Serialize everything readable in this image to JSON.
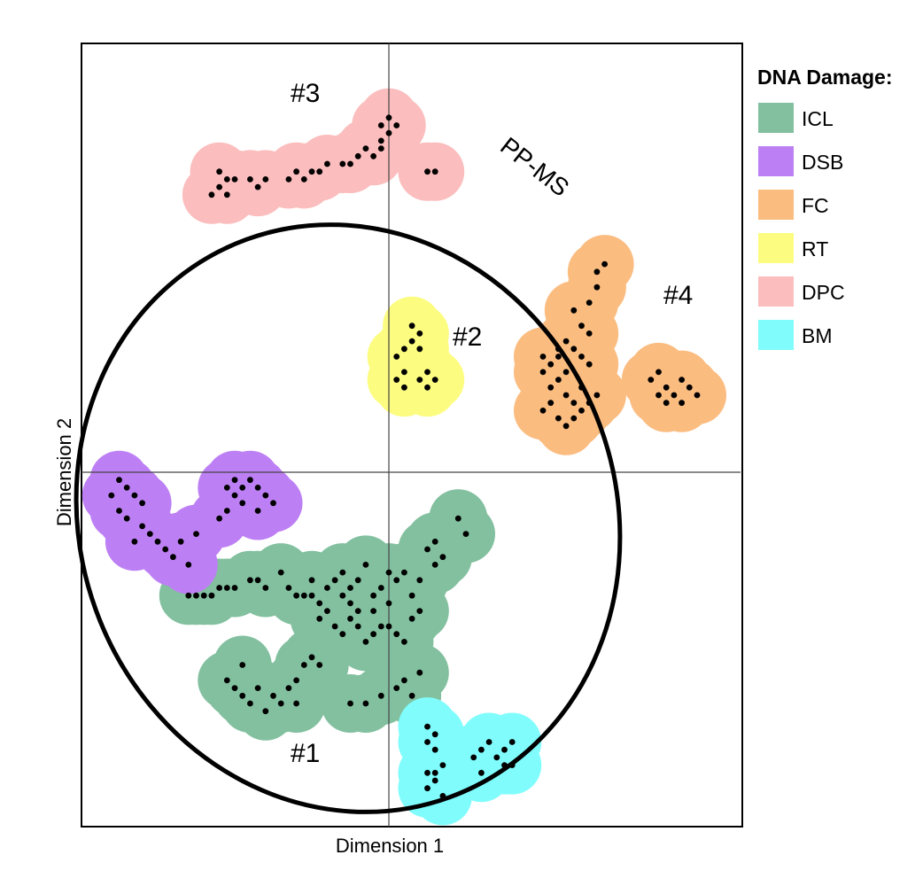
{
  "chart_data": {
    "type": "scatter",
    "xlabel": "Dimension 1",
    "ylabel": "Dimension 2",
    "legend": {
      "title": "DNA Damage:",
      "placement": "right",
      "items": [
        {
          "name": "ICL",
          "color": "#82c09f"
        },
        {
          "name": "DSB",
          "color": "#bd80f4"
        },
        {
          "name": "FC",
          "color": "#fbbc80"
        },
        {
          "name": "RT",
          "color": "#fcfc80"
        },
        {
          "name": "DPC",
          "color": "#fbbdbd"
        },
        {
          "name": "BM",
          "color": "#80fcfc"
        }
      ]
    },
    "annotations": {
      "method": "PP-MS",
      "clusters": [
        "#1",
        "#2",
        "#3",
        "#4"
      ]
    },
    "axis_lines": {
      "x_zero": 0,
      "y_zero": 0
    },
    "grid": false,
    "series": [
      {
        "name": "ICL",
        "color": "#82c09f",
        "points": [
          [
            -2.6,
            -1.6
          ],
          [
            -2.5,
            -1.6
          ],
          [
            -2.4,
            -1.6
          ],
          [
            -2.3,
            -1.6
          ],
          [
            -2.2,
            -1.5
          ],
          [
            -2.1,
            -1.5
          ],
          [
            -2.0,
            -1.5
          ],
          [
            -1.8,
            -1.4
          ],
          [
            -1.7,
            -1.4
          ],
          [
            -1.6,
            -1.5
          ],
          [
            -1.4,
            -1.3
          ],
          [
            -1.3,
            -1.5
          ],
          [
            -1.2,
            -1.6
          ],
          [
            -1.1,
            -1.6
          ],
          [
            -1.0,
            -1.6
          ],
          [
            -0.9,
            -1.7
          ],
          [
            -0.8,
            -1.5
          ],
          [
            -0.7,
            -1.4
          ],
          [
            -0.6,
            -1.3
          ],
          [
            -0.5,
            -1.5
          ],
          [
            -0.4,
            -1.4
          ],
          [
            -0.3,
            -1.2
          ],
          [
            -0.2,
            -1.6
          ],
          [
            -0.1,
            -1.5
          ],
          [
            0.0,
            -1.7
          ],
          [
            0.1,
            -1.4
          ],
          [
            0.2,
            -1.3
          ],
          [
            0.3,
            -1.6
          ],
          [
            0.4,
            -1.4
          ],
          [
            0.5,
            -1.0
          ],
          [
            0.6,
            -0.9
          ],
          [
            0.9,
            -0.6
          ],
          [
            1.0,
            -0.8
          ],
          [
            0.7,
            -1.1
          ],
          [
            -0.9,
            -1.9
          ],
          [
            -0.7,
            -2.0
          ],
          [
            -0.6,
            -2.1
          ],
          [
            -0.5,
            -1.9
          ],
          [
            -0.4,
            -2.0
          ],
          [
            -0.3,
            -2.2
          ],
          [
            -0.2,
            -2.1
          ],
          [
            -0.1,
            -2.0
          ],
          [
            0.0,
            -2.0
          ],
          [
            0.1,
            -2.1
          ],
          [
            0.2,
            -2.2
          ],
          [
            -0.8,
            -1.8
          ],
          [
            0.3,
            -1.9
          ],
          [
            -0.5,
            -1.7
          ],
          [
            -2.0,
            -2.8
          ],
          [
            -2.1,
            -2.7
          ],
          [
            -1.9,
            -2.9
          ],
          [
            -1.8,
            -3.0
          ],
          [
            -1.7,
            -2.8
          ],
          [
            -1.5,
            -2.9
          ],
          [
            -1.4,
            -3.0
          ],
          [
            -1.3,
            -2.8
          ],
          [
            -1.2,
            -2.7
          ],
          [
            -1.1,
            -2.5
          ],
          [
            -1.0,
            -2.4
          ],
          [
            -0.9,
            -2.5
          ],
          [
            -1.6,
            -3.1
          ],
          [
            -1.2,
            -3.0
          ],
          [
            -0.5,
            -3.0
          ],
          [
            -0.3,
            -3.0
          ],
          [
            -0.1,
            -2.9
          ],
          [
            0.1,
            -2.8
          ],
          [
            0.2,
            -2.7
          ],
          [
            0.4,
            -2.6
          ],
          [
            0.3,
            -2.9
          ],
          [
            -1.9,
            -2.5
          ],
          [
            -0.6,
            -1.6
          ],
          [
            -0.2,
            -1.8
          ],
          [
            0.0,
            -1.3
          ],
          [
            0.4,
            -1.8
          ],
          [
            -0.4,
            -1.8
          ],
          [
            -1.0,
            -1.4
          ],
          [
            0.6,
            -1.2
          ]
        ]
      },
      {
        "name": "DSB",
        "color": "#bd80f4",
        "points": [
          [
            -3.5,
            -0.1
          ],
          [
            -3.4,
            -0.2
          ],
          [
            -3.3,
            -0.3
          ],
          [
            -3.5,
            -0.5
          ],
          [
            -3.4,
            -0.6
          ],
          [
            -3.2,
            -0.7
          ],
          [
            -3.1,
            -0.8
          ],
          [
            -3.0,
            -0.9
          ],
          [
            -2.9,
            -1.0
          ],
          [
            -2.8,
            -1.1
          ],
          [
            -2.7,
            -0.9
          ],
          [
            -2.6,
            -1.2
          ],
          [
            -2.5,
            -0.8
          ],
          [
            -3.3,
            -0.9
          ],
          [
            -3.2,
            -0.4
          ],
          [
            -3.6,
            -0.3
          ],
          [
            -2.2,
            -0.6
          ],
          [
            -2.1,
            -0.5
          ],
          [
            -2.0,
            -0.3
          ],
          [
            -1.9,
            -0.2
          ],
          [
            -1.8,
            -0.1
          ],
          [
            -1.7,
            -0.2
          ],
          [
            -1.6,
            -0.3
          ],
          [
            -1.5,
            -0.4
          ],
          [
            -2.0,
            -0.1
          ],
          [
            -1.9,
            -0.4
          ],
          [
            -2.1,
            -0.2
          ],
          [
            -1.7,
            -0.5
          ]
        ]
      },
      {
        "name": "FC",
        "color": "#fbbc80",
        "points": [
          [
            2.7,
            2.6
          ],
          [
            2.8,
            2.7
          ],
          [
            2.7,
            2.4
          ],
          [
            2.6,
            2.2
          ],
          [
            2.4,
            2.1
          ],
          [
            2.5,
            1.9
          ],
          [
            2.6,
            1.8
          ],
          [
            2.3,
            1.7
          ],
          [
            2.4,
            1.6
          ],
          [
            2.2,
            1.5
          ],
          [
            2.1,
            1.4
          ],
          [
            2.3,
            1.3
          ],
          [
            2.0,
            1.5
          ],
          [
            2.5,
            1.5
          ],
          [
            2.6,
            1.4
          ],
          [
            2.2,
            1.2
          ],
          [
            2.3,
            1.0
          ],
          [
            2.4,
            0.9
          ],
          [
            2.1,
            0.9
          ],
          [
            2.0,
            0.8
          ],
          [
            2.5,
            0.8
          ],
          [
            2.6,
            0.9
          ],
          [
            2.2,
            0.7
          ],
          [
            2.3,
            0.6
          ],
          [
            2.5,
            1.1
          ],
          [
            2.1,
            1.1
          ],
          [
            2.0,
            1.3
          ],
          [
            2.7,
            1.0
          ],
          [
            2.4,
            0.7
          ],
          [
            2.2,
            1.6
          ],
          [
            3.4,
            1.2
          ],
          [
            3.5,
            1.0
          ],
          [
            3.6,
            1.1
          ],
          [
            3.7,
            1.0
          ],
          [
            3.8,
            1.2
          ],
          [
            3.9,
            1.1
          ],
          [
            3.6,
            0.9
          ],
          [
            3.8,
            0.9
          ],
          [
            3.5,
            1.3
          ],
          [
            4.0,
            1.0
          ]
        ]
      },
      {
        "name": "RT",
        "color": "#fcfc80",
        "points": [
          [
            0.3,
            1.9
          ],
          [
            0.4,
            1.8
          ],
          [
            0.4,
            1.6
          ],
          [
            0.2,
            1.6
          ],
          [
            0.1,
            1.5
          ],
          [
            0.5,
            1.3
          ],
          [
            0.4,
            1.2
          ],
          [
            0.2,
            1.3
          ],
          [
            0.1,
            1.2
          ],
          [
            0.6,
            1.2
          ],
          [
            0.5,
            1.1
          ],
          [
            0.2,
            1.1
          ],
          [
            0.3,
            1.7
          ]
        ]
      },
      {
        "name": "DPC",
        "color": "#fbbdbd",
        "points": [
          [
            -2.2,
            3.7
          ],
          [
            -2.3,
            3.6
          ],
          [
            -2.1,
            3.8
          ],
          [
            -2.2,
            3.9
          ],
          [
            -2.0,
            3.8
          ],
          [
            -1.8,
            3.8
          ],
          [
            -1.7,
            3.7
          ],
          [
            -1.6,
            3.8
          ],
          [
            -1.3,
            3.8
          ],
          [
            -1.2,
            3.9
          ],
          [
            -1.1,
            3.8
          ],
          [
            -1.0,
            3.9
          ],
          [
            -0.9,
            3.9
          ],
          [
            -0.8,
            4.0
          ],
          [
            -0.6,
            4.0
          ],
          [
            -0.5,
            4.0
          ],
          [
            -0.4,
            4.1
          ],
          [
            -0.3,
            4.2
          ],
          [
            -0.2,
            4.1
          ],
          [
            -0.1,
            4.3
          ],
          [
            0.0,
            4.4
          ],
          [
            -0.1,
            4.5
          ],
          [
            0.1,
            4.5
          ],
          [
            0.0,
            4.6
          ],
          [
            -0.1,
            4.2
          ],
          [
            0.5,
            3.9
          ],
          [
            0.6,
            3.9
          ],
          [
            -2.1,
            3.6
          ]
        ]
      },
      {
        "name": "BM",
        "color": "#80fcfc",
        "points": [
          [
            0.5,
            -3.3
          ],
          [
            0.6,
            -3.4
          ],
          [
            0.5,
            -3.5
          ],
          [
            0.6,
            -3.6
          ],
          [
            0.5,
            -3.9
          ],
          [
            0.6,
            -3.9
          ],
          [
            0.7,
            -3.8
          ],
          [
            0.6,
            -4.0
          ],
          [
            0.5,
            -4.1
          ],
          [
            0.7,
            -4.2
          ],
          [
            1.2,
            -3.6
          ],
          [
            1.3,
            -3.5
          ],
          [
            1.4,
            -3.7
          ],
          [
            1.5,
            -3.6
          ],
          [
            1.6,
            -3.5
          ],
          [
            1.5,
            -3.8
          ],
          [
            1.2,
            -3.9
          ],
          [
            1.6,
            -3.8
          ],
          [
            1.1,
            -3.7
          ]
        ]
      }
    ]
  }
}
